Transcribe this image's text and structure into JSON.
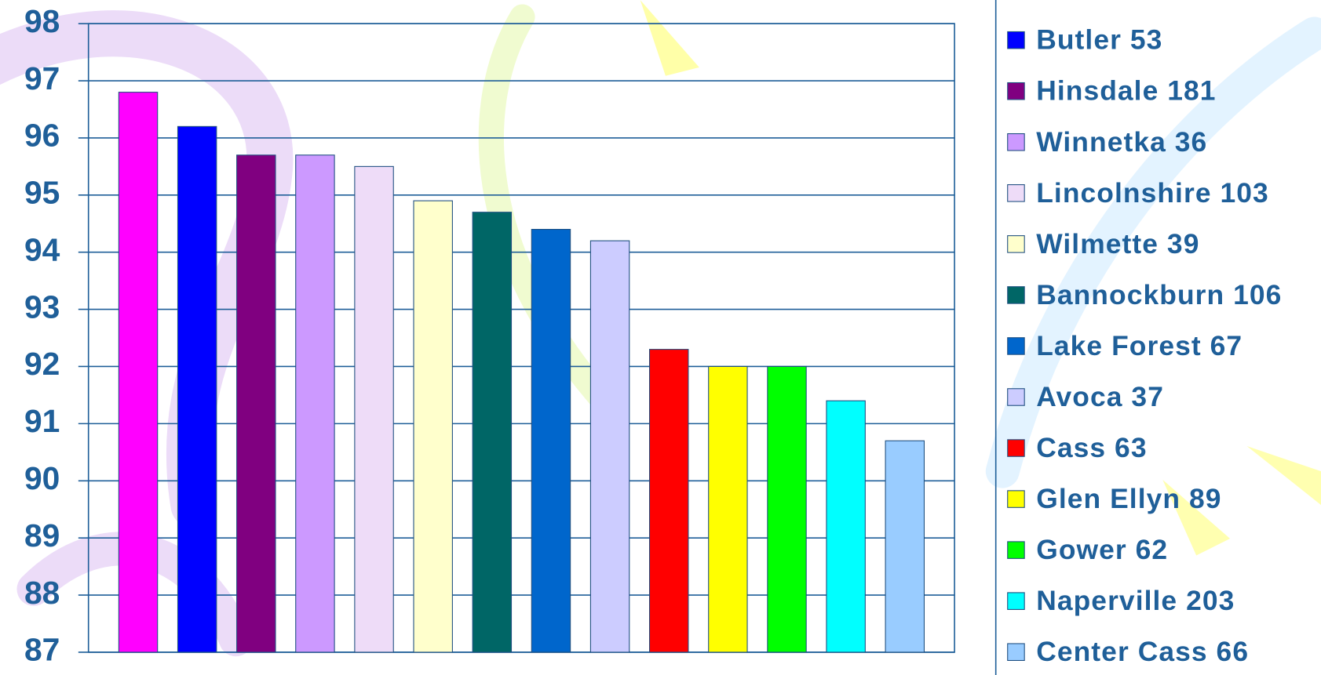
{
  "chart_data": {
    "type": "bar",
    "series": [
      {
        "name": null,
        "color": "#ff00ff",
        "values": [
          96.8
        ]
      },
      {
        "name": "Butler 53",
        "color": "#0000ff",
        "values": [
          96.2
        ]
      },
      {
        "name": "Hinsdale 181",
        "color": "#800080",
        "values": [
          95.7
        ]
      },
      {
        "name": "Winnetka 36",
        "color": "#cc99ff",
        "values": [
          95.7
        ]
      },
      {
        "name": "Lincolnshire 103",
        "color": "#eedcf8",
        "values": [
          95.5
        ]
      },
      {
        "name": "Wilmette 39",
        "color": "#ffffcc",
        "values": [
          94.9
        ]
      },
      {
        "name": "Bannockburn 106",
        "color": "#006666",
        "values": [
          94.7
        ]
      },
      {
        "name": "Lake Forest 67",
        "color": "#0066cc",
        "values": [
          94.4
        ]
      },
      {
        "name": "Avoca 37",
        "color": "#ccccff",
        "values": [
          94.2
        ]
      },
      {
        "name": "Cass 63",
        "color": "#ff0000",
        "values": [
          92.3
        ]
      },
      {
        "name": "Glen Ellyn 89",
        "color": "#ffff00",
        "values": [
          92.0
        ]
      },
      {
        "name": "Gower 62",
        "color": "#00ff00",
        "values": [
          92.0
        ]
      },
      {
        "name": "Naperville 203",
        "color": "#00ffff",
        "values": [
          91.4
        ]
      },
      {
        "name": "Center Cass 66",
        "color": "#99ccff",
        "values": [
          90.7
        ]
      }
    ],
    "ylim": [
      87,
      98
    ],
    "yticks": [
      87,
      88,
      89,
      90,
      91,
      92,
      93,
      94,
      95,
      96,
      97,
      98
    ],
    "grid": true,
    "legend": "right"
  }
}
